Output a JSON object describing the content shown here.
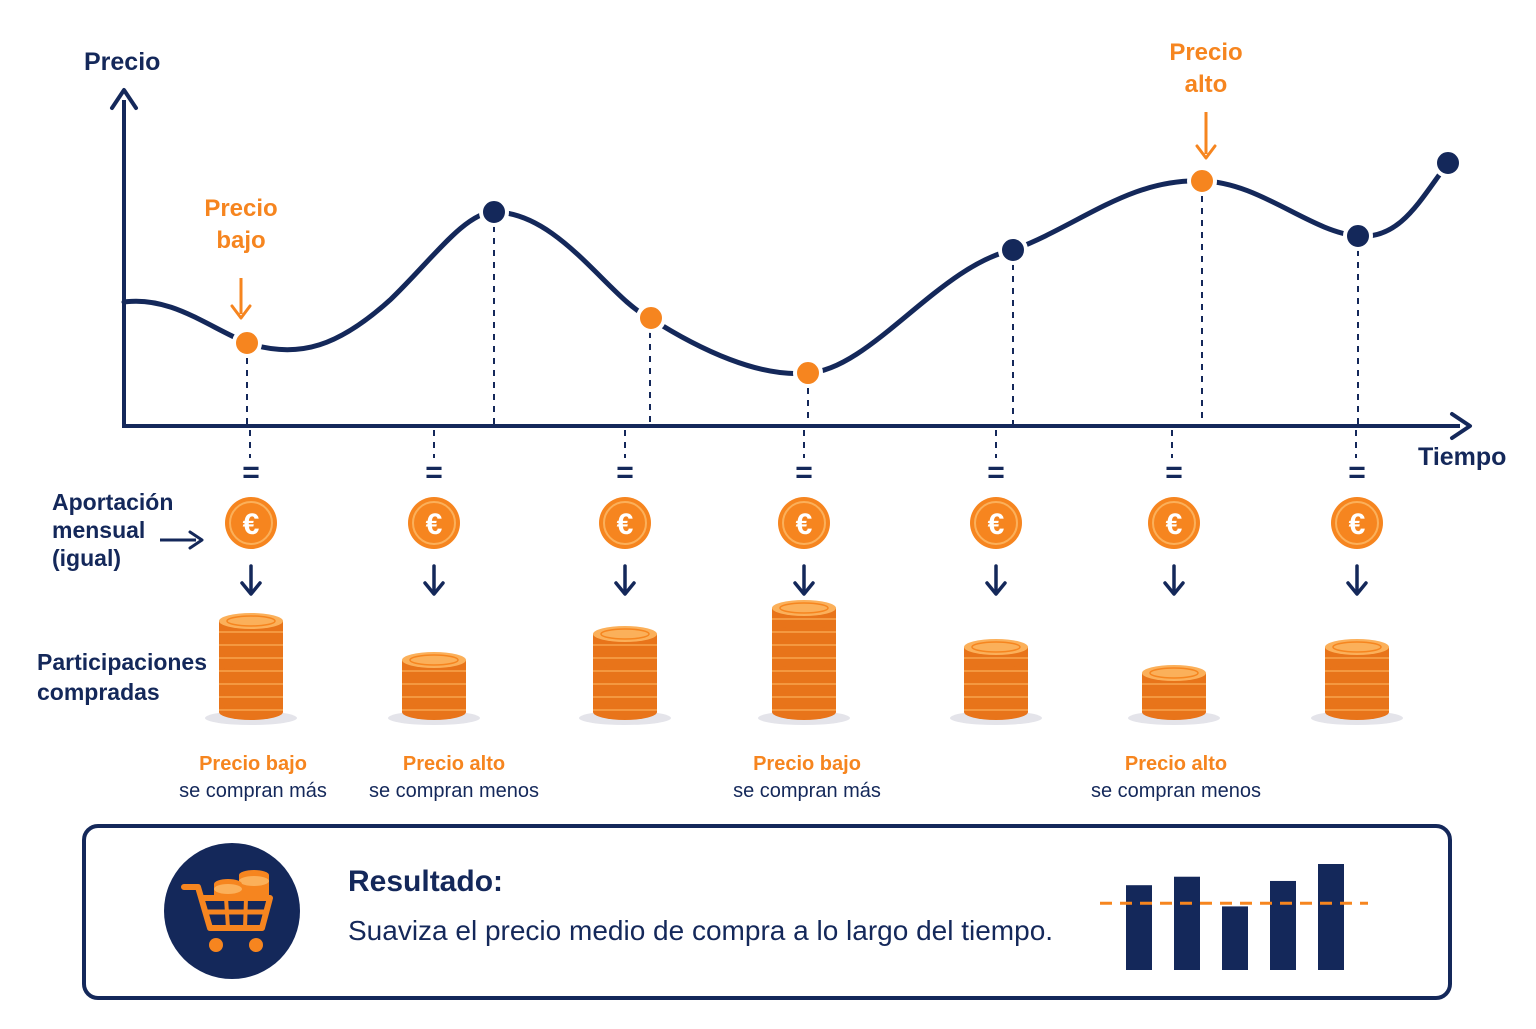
{
  "axes": {
    "y_label": "Precio",
    "x_label": "Tiempo"
  },
  "callouts": {
    "low": [
      "Precio",
      "bajo"
    ],
    "high": [
      "Precio",
      "alto"
    ]
  },
  "side_labels": {
    "contribution": [
      "Aportación",
      "mensual",
      "(igual)"
    ],
    "shares": [
      "Participaciones",
      "compradas"
    ]
  },
  "symbols": {
    "equals": "=",
    "currency": "€"
  },
  "captions": [
    {
      "line1": "Precio bajo",
      "line2": "se compran más"
    },
    {
      "line1": "Precio alto",
      "line2": "se compran menos"
    },
    {
      "line1": "Precio bajo",
      "line2": "se compran más"
    },
    {
      "line1": "Precio alto",
      "line2": "se compran menos"
    }
  ],
  "result": {
    "title": "Resultado:",
    "description": "Suaviza el precio medio de compra a lo largo del tiempo."
  },
  "icons": [
    "shopping-cart-icon",
    "euro-coin-icon",
    "arrow-down-icon",
    "arrow-right-icon",
    "coin-stack-icon",
    "bar-chart-icon"
  ],
  "colors": {
    "navy": "#14285a",
    "orange": "#f6851f",
    "coin_dark": "#e8741a",
    "coin_light": "#fbb05a"
  },
  "coin_stacks": [
    {
      "coins": 7,
      "level": "Precio bajo"
    },
    {
      "coins": 4,
      "level": "Precio alto"
    },
    {
      "coins": 6,
      "level": ""
    },
    {
      "coins": 8,
      "level": "Precio bajo"
    },
    {
      "coins": 5,
      "level": ""
    },
    {
      "coins": 3,
      "level": "Precio alto"
    },
    {
      "coins": 5,
      "level": ""
    }
  ],
  "result_chart": {
    "bars": [
      0.8,
      0.88,
      0.6,
      0.84,
      1.0
    ],
    "average_level": 0.63
  }
}
